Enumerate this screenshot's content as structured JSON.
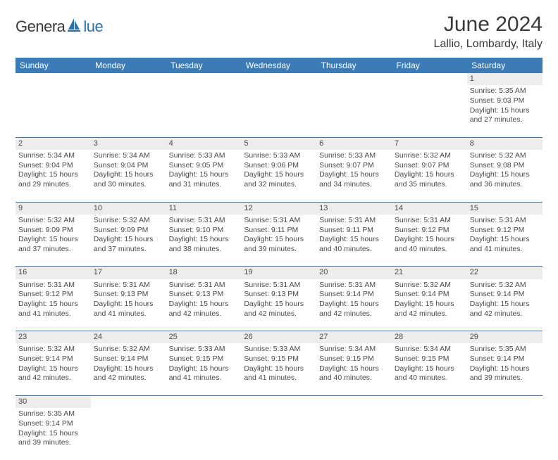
{
  "logo": {
    "text_main": "Genera",
    "text_sub": "lue"
  },
  "title": "June 2024",
  "location": "Lallio, Lombardy, Italy",
  "colors": {
    "header_bg": "#3b7cb8",
    "header_text": "#ffffff",
    "daynum_bg": "#ededed",
    "border": "#3b7cb8",
    "text": "#4a4a4a",
    "logo_main": "#3a3a3a",
    "logo_sub": "#2f6fa8"
  },
  "day_headers": [
    "Sunday",
    "Monday",
    "Tuesday",
    "Wednesday",
    "Thursday",
    "Friday",
    "Saturday"
  ],
  "weeks": [
    [
      null,
      null,
      null,
      null,
      null,
      null,
      {
        "n": "1",
        "sr": "Sunrise: 5:35 AM",
        "ss": "Sunset: 9:03 PM",
        "d1": "Daylight: 15 hours",
        "d2": "and 27 minutes."
      }
    ],
    [
      {
        "n": "2",
        "sr": "Sunrise: 5:34 AM",
        "ss": "Sunset: 9:04 PM",
        "d1": "Daylight: 15 hours",
        "d2": "and 29 minutes."
      },
      {
        "n": "3",
        "sr": "Sunrise: 5:34 AM",
        "ss": "Sunset: 9:04 PM",
        "d1": "Daylight: 15 hours",
        "d2": "and 30 minutes."
      },
      {
        "n": "4",
        "sr": "Sunrise: 5:33 AM",
        "ss": "Sunset: 9:05 PM",
        "d1": "Daylight: 15 hours",
        "d2": "and 31 minutes."
      },
      {
        "n": "5",
        "sr": "Sunrise: 5:33 AM",
        "ss": "Sunset: 9:06 PM",
        "d1": "Daylight: 15 hours",
        "d2": "and 32 minutes."
      },
      {
        "n": "6",
        "sr": "Sunrise: 5:33 AM",
        "ss": "Sunset: 9:07 PM",
        "d1": "Daylight: 15 hours",
        "d2": "and 34 minutes."
      },
      {
        "n": "7",
        "sr": "Sunrise: 5:32 AM",
        "ss": "Sunset: 9:07 PM",
        "d1": "Daylight: 15 hours",
        "d2": "and 35 minutes."
      },
      {
        "n": "8",
        "sr": "Sunrise: 5:32 AM",
        "ss": "Sunset: 9:08 PM",
        "d1": "Daylight: 15 hours",
        "d2": "and 36 minutes."
      }
    ],
    [
      {
        "n": "9",
        "sr": "Sunrise: 5:32 AM",
        "ss": "Sunset: 9:09 PM",
        "d1": "Daylight: 15 hours",
        "d2": "and 37 minutes."
      },
      {
        "n": "10",
        "sr": "Sunrise: 5:32 AM",
        "ss": "Sunset: 9:09 PM",
        "d1": "Daylight: 15 hours",
        "d2": "and 37 minutes."
      },
      {
        "n": "11",
        "sr": "Sunrise: 5:31 AM",
        "ss": "Sunset: 9:10 PM",
        "d1": "Daylight: 15 hours",
        "d2": "and 38 minutes."
      },
      {
        "n": "12",
        "sr": "Sunrise: 5:31 AM",
        "ss": "Sunset: 9:11 PM",
        "d1": "Daylight: 15 hours",
        "d2": "and 39 minutes."
      },
      {
        "n": "13",
        "sr": "Sunrise: 5:31 AM",
        "ss": "Sunset: 9:11 PM",
        "d1": "Daylight: 15 hours",
        "d2": "and 40 minutes."
      },
      {
        "n": "14",
        "sr": "Sunrise: 5:31 AM",
        "ss": "Sunset: 9:12 PM",
        "d1": "Daylight: 15 hours",
        "d2": "and 40 minutes."
      },
      {
        "n": "15",
        "sr": "Sunrise: 5:31 AM",
        "ss": "Sunset: 9:12 PM",
        "d1": "Daylight: 15 hours",
        "d2": "and 41 minutes."
      }
    ],
    [
      {
        "n": "16",
        "sr": "Sunrise: 5:31 AM",
        "ss": "Sunset: 9:12 PM",
        "d1": "Daylight: 15 hours",
        "d2": "and 41 minutes."
      },
      {
        "n": "17",
        "sr": "Sunrise: 5:31 AM",
        "ss": "Sunset: 9:13 PM",
        "d1": "Daylight: 15 hours",
        "d2": "and 41 minutes."
      },
      {
        "n": "18",
        "sr": "Sunrise: 5:31 AM",
        "ss": "Sunset: 9:13 PM",
        "d1": "Daylight: 15 hours",
        "d2": "and 42 minutes."
      },
      {
        "n": "19",
        "sr": "Sunrise: 5:31 AM",
        "ss": "Sunset: 9:13 PM",
        "d1": "Daylight: 15 hours",
        "d2": "and 42 minutes."
      },
      {
        "n": "20",
        "sr": "Sunrise: 5:31 AM",
        "ss": "Sunset: 9:14 PM",
        "d1": "Daylight: 15 hours",
        "d2": "and 42 minutes."
      },
      {
        "n": "21",
        "sr": "Sunrise: 5:32 AM",
        "ss": "Sunset: 9:14 PM",
        "d1": "Daylight: 15 hours",
        "d2": "and 42 minutes."
      },
      {
        "n": "22",
        "sr": "Sunrise: 5:32 AM",
        "ss": "Sunset: 9:14 PM",
        "d1": "Daylight: 15 hours",
        "d2": "and 42 minutes."
      }
    ],
    [
      {
        "n": "23",
        "sr": "Sunrise: 5:32 AM",
        "ss": "Sunset: 9:14 PM",
        "d1": "Daylight: 15 hours",
        "d2": "and 42 minutes."
      },
      {
        "n": "24",
        "sr": "Sunrise: 5:32 AM",
        "ss": "Sunset: 9:14 PM",
        "d1": "Daylight: 15 hours",
        "d2": "and 42 minutes."
      },
      {
        "n": "25",
        "sr": "Sunrise: 5:33 AM",
        "ss": "Sunset: 9:15 PM",
        "d1": "Daylight: 15 hours",
        "d2": "and 41 minutes."
      },
      {
        "n": "26",
        "sr": "Sunrise: 5:33 AM",
        "ss": "Sunset: 9:15 PM",
        "d1": "Daylight: 15 hours",
        "d2": "and 41 minutes."
      },
      {
        "n": "27",
        "sr": "Sunrise: 5:34 AM",
        "ss": "Sunset: 9:15 PM",
        "d1": "Daylight: 15 hours",
        "d2": "and 40 minutes."
      },
      {
        "n": "28",
        "sr": "Sunrise: 5:34 AM",
        "ss": "Sunset: 9:15 PM",
        "d1": "Daylight: 15 hours",
        "d2": "and 40 minutes."
      },
      {
        "n": "29",
        "sr": "Sunrise: 5:35 AM",
        "ss": "Sunset: 9:14 PM",
        "d1": "Daylight: 15 hours",
        "d2": "and 39 minutes."
      }
    ],
    [
      {
        "n": "30",
        "sr": "Sunrise: 5:35 AM",
        "ss": "Sunset: 9:14 PM",
        "d1": "Daylight: 15 hours",
        "d2": "and 39 minutes."
      },
      null,
      null,
      null,
      null,
      null,
      null
    ]
  ]
}
